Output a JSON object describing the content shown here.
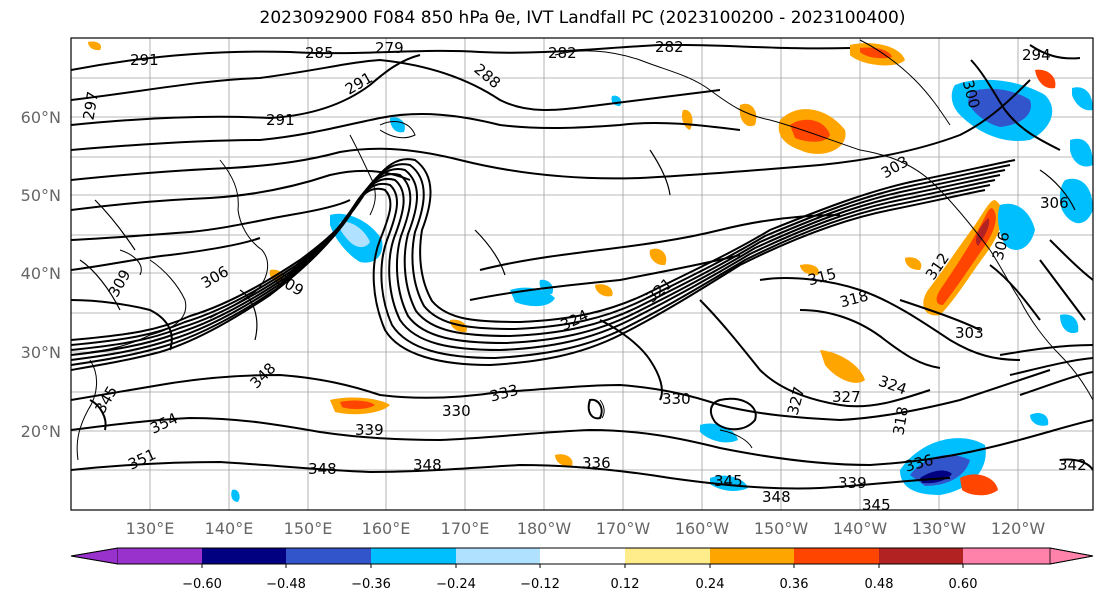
{
  "title": "2023092900 F084 850 hPa θe, IVT Landfall PC (2023100200 - 2023100400)",
  "map": {
    "lon_labels": [
      "130°E",
      "140°E",
      "150°E",
      "160°E",
      "170°E",
      "180°W",
      "170°W",
      "160°W",
      "150°W",
      "140°W",
      "130°W",
      "120°W"
    ],
    "lat_labels": [
      "60°N",
      "50°N",
      "40°N",
      "30°N",
      "20°N"
    ],
    "contour_labels": [
      {
        "id": "c291a",
        "text": "291"
      },
      {
        "id": "c285",
        "text": "285"
      },
      {
        "id": "c279",
        "text": "279"
      },
      {
        "id": "c282a",
        "text": "282"
      },
      {
        "id": "c282b",
        "text": "282"
      },
      {
        "id": "c294",
        "text": "294"
      },
      {
        "id": "c291b",
        "text": "291"
      },
      {
        "id": "c288",
        "text": "288"
      },
      {
        "id": "c291c",
        "text": "291"
      },
      {
        "id": "c297",
        "text": "297"
      },
      {
        "id": "c300a",
        "text": "300"
      },
      {
        "id": "c303a",
        "text": "303"
      },
      {
        "id": "c306a",
        "text": "306"
      },
      {
        "id": "c306b",
        "text": "306"
      },
      {
        "id": "c306c",
        "text": "306"
      },
      {
        "id": "c309a",
        "text": "309"
      },
      {
        "id": "c309b",
        "text": "309"
      },
      {
        "id": "c315",
        "text": "315"
      },
      {
        "id": "c318",
        "text": "318"
      },
      {
        "id": "c303b",
        "text": "303"
      },
      {
        "id": "c321",
        "text": "321"
      },
      {
        "id": "c324a",
        "text": "324"
      },
      {
        "id": "c324b",
        "text": "324"
      },
      {
        "id": "c327a",
        "text": "327"
      },
      {
        "id": "c327b",
        "text": "327"
      },
      {
        "id": "c348a",
        "text": "348"
      },
      {
        "id": "c345a",
        "text": "345"
      },
      {
        "id": "c354",
        "text": "354"
      },
      {
        "id": "c351",
        "text": "351"
      },
      {
        "id": "c339a",
        "text": "339"
      },
      {
        "id": "c330a",
        "text": "330"
      },
      {
        "id": "c333",
        "text": "333"
      },
      {
        "id": "c330b",
        "text": "330"
      },
      {
        "id": "c348b",
        "text": "348"
      },
      {
        "id": "c348c",
        "text": "348"
      },
      {
        "id": "c336",
        "text": "336"
      },
      {
        "id": "c345b",
        "text": "345"
      },
      {
        "id": "c348d",
        "text": "348"
      },
      {
        "id": "c339b",
        "text": "339"
      },
      {
        "id": "c345c",
        "text": "345"
      },
      {
        "id": "c336b",
        "text": "336"
      },
      {
        "id": "c342",
        "text": "342"
      },
      {
        "id": "c318b",
        "text": "318"
      },
      {
        "id": "c312",
        "text": "312"
      }
    ]
  },
  "colorbar": {
    "colors": [
      "#9932cc",
      "#000080",
      "#3355cc",
      "#00bfff",
      "#b0e2ff",
      "#ffffff",
      "#ffec8b",
      "#ffa500",
      "#ff4500",
      "#b22222",
      "#ff82ab"
    ],
    "tick_labels": [
      "−0.60",
      "−0.48",
      "−0.36",
      "−0.24",
      "−0.12",
      "0.12",
      "0.24",
      "0.36",
      "0.48",
      "0.60"
    ]
  }
}
